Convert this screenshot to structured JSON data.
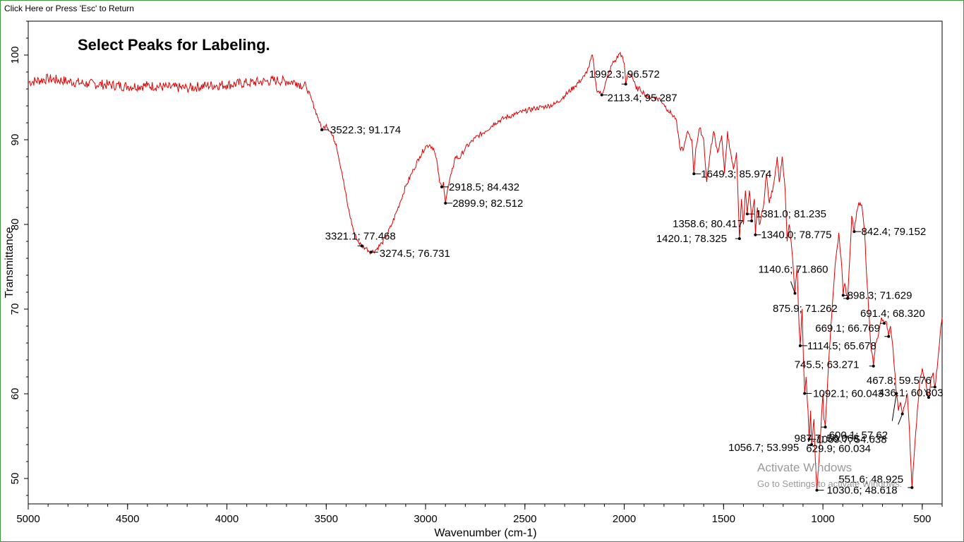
{
  "header": {
    "return_label": "Click Here or Press 'Esc' to Return"
  },
  "watermark": {
    "line1": "Activate Windows",
    "line2": "Go to Settings to activate Windows."
  },
  "colors": {
    "spectrum": "#e00000",
    "axis": "#000000",
    "background": "#ffffff",
    "frame": "#3c9a3c"
  },
  "chart_data": {
    "type": "line",
    "title": "Select Peaks for Labeling.",
    "xlabel": "Wavenumber (cm-1)",
    "ylabel": "Transmittance",
    "xlim": [
      5000,
      400
    ],
    "ylim": [
      47,
      104
    ],
    "x_reversed": true,
    "x_ticks": [
      5000,
      4500,
      4000,
      3500,
      3000,
      2500,
      2000,
      1500,
      1000,
      500
    ],
    "y_ticks": [
      50,
      60,
      70,
      80,
      90,
      100
    ],
    "grid": false,
    "series": [
      {
        "color": "#e00000",
        "points": [
          [
            5000,
            96.8
          ],
          [
            4900,
            97.2
          ],
          [
            4800,
            96.9
          ],
          [
            4700,
            96.6
          ],
          [
            4600,
            96.5
          ],
          [
            4500,
            96.3
          ],
          [
            4400,
            96.4
          ],
          [
            4300,
            96.2
          ],
          [
            4200,
            96.1
          ],
          [
            4100,
            96.4
          ],
          [
            4000,
            96.5
          ],
          [
            3900,
            96.7
          ],
          [
            3800,
            96.9
          ],
          [
            3750,
            97.0
          ],
          [
            3700,
            96.9
          ],
          [
            3650,
            96.8
          ],
          [
            3600,
            96.2
          ],
          [
            3570,
            94.5
          ],
          [
            3540,
            92.5
          ],
          [
            3522.3,
            91.174
          ],
          [
            3500,
            91.8
          ],
          [
            3480,
            91.0
          ],
          [
            3450,
            89.5
          ],
          [
            3420,
            86.0
          ],
          [
            3390,
            82.0
          ],
          [
            3360,
            79.0
          ],
          [
            3340,
            78.0
          ],
          [
            3321.1,
            77.468
          ],
          [
            3300,
            77.2
          ],
          [
            3274.5,
            76.731
          ],
          [
            3250,
            77.0
          ],
          [
            3220,
            77.8
          ],
          [
            3200,
            78.5
          ],
          [
            3170,
            80.0
          ],
          [
            3130,
            82.5
          ],
          [
            3100,
            84.5
          ],
          [
            3060,
            86.5
          ],
          [
            3030,
            88.0
          ],
          [
            3000,
            89.2
          ],
          [
            2980,
            89.4
          ],
          [
            2960,
            89.0
          ],
          [
            2940,
            87.0
          ],
          [
            2930,
            85.0
          ],
          [
            2918.5,
            84.432
          ],
          [
            2910,
            85.0
          ],
          [
            2899.9,
            82.512
          ],
          [
            2890,
            84.0
          ],
          [
            2870,
            86.0
          ],
          [
            2850,
            88.0
          ],
          [
            2830,
            87.8
          ],
          [
            2800,
            89.0
          ],
          [
            2750,
            90.2
          ],
          [
            2700,
            91.0
          ],
          [
            2650,
            92.0
          ],
          [
            2600,
            92.6
          ],
          [
            2550,
            93.0
          ],
          [
            2500,
            93.4
          ],
          [
            2450,
            93.7
          ],
          [
            2400,
            93.9
          ],
          [
            2350,
            94.2
          ],
          [
            2300,
            95.2
          ],
          [
            2250,
            96.3
          ],
          [
            2200,
            97.5
          ],
          [
            2180,
            98.5
          ],
          [
            2160,
            100.0
          ],
          [
            2150,
            98.0
          ],
          [
            2140,
            96.0
          ],
          [
            2113.4,
            95.287
          ],
          [
            2090,
            97.0
          ],
          [
            2060,
            99.0
          ],
          [
            2040,
            99.5
          ],
          [
            2020,
            100.3
          ],
          [
            2000,
            99.0
          ],
          [
            1992.3,
            96.572
          ],
          [
            1980,
            98.0
          ],
          [
            1960,
            97.5
          ],
          [
            1940,
            96.0
          ],
          [
            1920,
            96.0
          ],
          [
            1900,
            95.5
          ],
          [
            1880,
            95.0
          ],
          [
            1850,
            95.0
          ],
          [
            1820,
            94.8
          ],
          [
            1800,
            94.2
          ],
          [
            1780,
            93.5
          ],
          [
            1760,
            93.0
          ],
          [
            1740,
            92.5
          ],
          [
            1720,
            89.0
          ],
          [
            1700,
            89.0
          ],
          [
            1680,
            91.0
          ],
          [
            1660,
            90.0
          ],
          [
            1649.3,
            85.974
          ],
          [
            1640,
            89.0
          ],
          [
            1620,
            91.4
          ],
          [
            1600,
            90.0
          ],
          [
            1585,
            85.0
          ],
          [
            1570,
            88.0
          ],
          [
            1550,
            91.0
          ],
          [
            1530,
            88.5
          ],
          [
            1510,
            90.5
          ],
          [
            1495,
            86.0
          ],
          [
            1480,
            91.0
          ],
          [
            1470,
            89.0
          ],
          [
            1450,
            86.5
          ],
          [
            1435,
            88.5
          ],
          [
            1420.1,
            78.325
          ],
          [
            1410,
            83.0
          ],
          [
            1400,
            80.0
          ],
          [
            1390,
            84.0
          ],
          [
            1381.0,
            81.235
          ],
          [
            1370,
            84.0
          ],
          [
            1358.6,
            80.417
          ],
          [
            1345,
            83.0
          ],
          [
            1340.0,
            78.775
          ],
          [
            1330,
            82.0
          ],
          [
            1320,
            80.0
          ],
          [
            1300,
            82.0
          ],
          [
            1285,
            86.0
          ],
          [
            1270,
            82.5
          ],
          [
            1250,
            84.5
          ],
          [
            1230,
            88.0
          ],
          [
            1220,
            85.0
          ],
          [
            1205,
            88.0
          ],
          [
            1190,
            84.0
          ],
          [
            1180,
            78.0
          ],
          [
            1170,
            80.0
          ],
          [
            1160,
            78.0
          ],
          [
            1150,
            75.0
          ],
          [
            1140.6,
            71.86
          ],
          [
            1130,
            75.0
          ],
          [
            1120,
            68.0
          ],
          [
            1114.5,
            65.678
          ],
          [
            1105,
            70.0
          ],
          [
            1098,
            64.0
          ],
          [
            1092.1,
            60.043
          ],
          [
            1085,
            62.0
          ],
          [
            1075,
            58.0
          ],
          [
            1069.7,
            54.638
          ],
          [
            1062,
            58.0
          ],
          [
            1056.7,
            53.995
          ],
          [
            1045,
            57.0
          ],
          [
            1038,
            52.0
          ],
          [
            1030.6,
            48.618
          ],
          [
            1020,
            52.0
          ],
          [
            1010,
            56.0
          ],
          [
            1000,
            60.0
          ],
          [
            995,
            57.0
          ],
          [
            987.7,
            56.068
          ],
          [
            975,
            62.0
          ],
          [
            960,
            68.0
          ],
          [
            945,
            73.0
          ],
          [
            935,
            76.0
          ],
          [
            920,
            79.0
          ],
          [
            905,
            75.0
          ],
          [
            898.3,
            71.629
          ],
          [
            890,
            73.0
          ],
          [
            875.9,
            71.262
          ],
          [
            865,
            76.0
          ],
          [
            855,
            81.0
          ],
          [
            842.4,
            79.152
          ],
          [
            830,
            81.5
          ],
          [
            820,
            82.6
          ],
          [
            805,
            82.3
          ],
          [
            790,
            79.0
          ],
          [
            780,
            74.0
          ],
          [
            770,
            70.0
          ],
          [
            760,
            66.0
          ],
          [
            745.5,
            63.271
          ],
          [
            735,
            66.0
          ],
          [
            720,
            67.0
          ],
          [
            705,
            69.0
          ],
          [
            691.4,
            68.32
          ],
          [
            680,
            68.5
          ],
          [
            669.1,
            66.769
          ],
          [
            660,
            68.0
          ],
          [
            650,
            66.0
          ],
          [
            640,
            63.0
          ],
          [
            629.9,
            60.034
          ],
          [
            620,
            58.0
          ],
          [
            610,
            59.0
          ],
          [
            600.1,
            57.62
          ],
          [
            590,
            58.5
          ],
          [
            575,
            60.0
          ],
          [
            565,
            56.0
          ],
          [
            551.6,
            48.925
          ],
          [
            540,
            53.0
          ],
          [
            525,
            58.0
          ],
          [
            510,
            62.0
          ],
          [
            500,
            63.0
          ],
          [
            490,
            62.0
          ],
          [
            480,
            61.0
          ],
          [
            467.8,
            59.576
          ],
          [
            455,
            62.0
          ],
          [
            445,
            62.5
          ],
          [
            436.1,
            60.803
          ],
          [
            425,
            63.0
          ],
          [
            410,
            67.0
          ],
          [
            400,
            69.0
          ]
        ]
      }
    ],
    "peaks": [
      {
        "x": 3522.3,
        "y": 91.174,
        "label": "3522.3; 91.174"
      },
      {
        "x": 3321.1,
        "y": 77.468,
        "label": "3321.1; 77.468"
      },
      {
        "x": 3274.5,
        "y": 76.731,
        "label": "3274.5; 76.731"
      },
      {
        "x": 2918.5,
        "y": 84.432,
        "label": "2918.5; 84.432"
      },
      {
        "x": 2899.9,
        "y": 82.512,
        "label": "2899.9; 82.512"
      },
      {
        "x": 1992.3,
        "y": 96.572,
        "label": "1992.3; 96.572"
      },
      {
        "x": 2113.4,
        "y": 95.287,
        "label": "2113.4; 95.287"
      },
      {
        "x": 1649.3,
        "y": 85.974,
        "label": "1649.3; 85.974"
      },
      {
        "x": 1381.0,
        "y": 81.235,
        "label": "1381.0; 81.235"
      },
      {
        "x": 1358.6,
        "y": 80.417,
        "label": "1358.6; 80.417"
      },
      {
        "x": 1420.1,
        "y": 78.325,
        "label": "1420.1; 78.325"
      },
      {
        "x": 1340.0,
        "y": 78.775,
        "label": "1340.0; 78.775"
      },
      {
        "x": 842.4,
        "y": 79.152,
        "label": "842.4; 79.152"
      },
      {
        "x": 1140.6,
        "y": 71.86,
        "label": "1140.6; 71.860"
      },
      {
        "x": 898.3,
        "y": 71.629,
        "label": "898.3; 71.629"
      },
      {
        "x": 875.9,
        "y": 71.262,
        "label": "875.9; 71.262"
      },
      {
        "x": 691.4,
        "y": 68.32,
        "label": "691.4; 68.320"
      },
      {
        "x": 669.1,
        "y": 66.769,
        "label": "669.1; 66.769"
      },
      {
        "x": 1114.5,
        "y": 65.678,
        "label": "1114.5; 65.678"
      },
      {
        "x": 745.5,
        "y": 63.271,
        "label": "745.5; 63.271"
      },
      {
        "x": 467.8,
        "y": 59.576,
        "label": "467.8; 59.576"
      },
      {
        "x": 1092.1,
        "y": 60.043,
        "label": "1092.1; 60.043"
      },
      {
        "x": 436.1,
        "y": 60.803,
        "label": "436.1; 60.803"
      },
      {
        "x": 987.7,
        "y": 56.068,
        "label": "987.7; 56.068"
      },
      {
        "x": 600.1,
        "y": 57.62,
        "label": "600.1; 57.62"
      },
      {
        "x": 1069.7,
        "y": 54.638,
        "label": "1069.7; 54.638"
      },
      {
        "x": 1056.7,
        "y": 53.995,
        "label": "1056.7; 53.995"
      },
      {
        "x": 629.9,
        "y": 60.034,
        "label": "629.9; 60.034"
      },
      {
        "x": 551.6,
        "y": 48.925,
        "label": "551.6; 48.925"
      },
      {
        "x": 1030.6,
        "y": 48.618,
        "label": "1030.6; 48.618"
      }
    ]
  }
}
